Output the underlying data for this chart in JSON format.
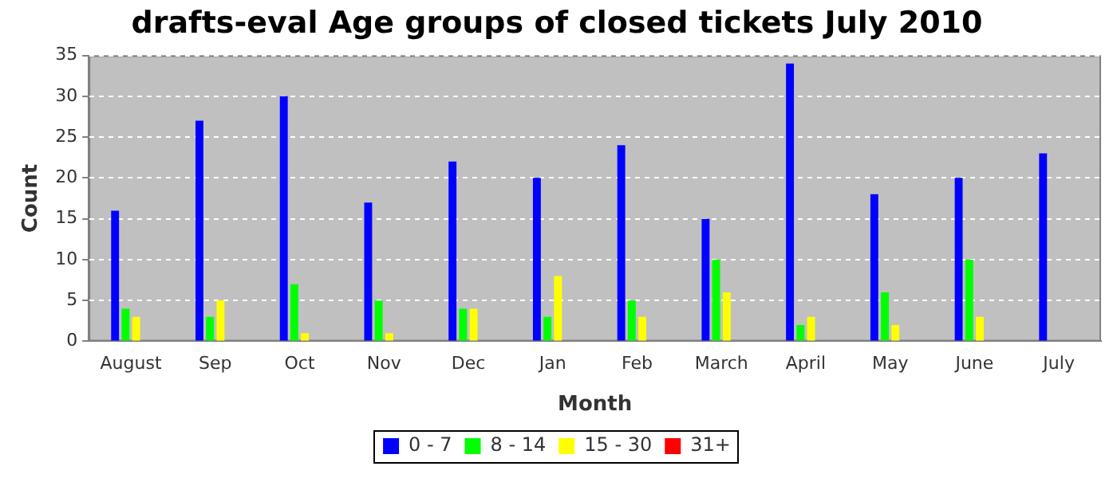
{
  "chart_data": {
    "type": "bar",
    "title": "drafts-eval Age groups of closed tickets July 2010",
    "xlabel": "Month",
    "ylabel": "Count",
    "categories": [
      "August",
      "Sep",
      "Oct",
      "Nov",
      "Dec",
      "Jan",
      "Feb",
      "March",
      "April",
      "May",
      "June",
      "July"
    ],
    "series": [
      {
        "name": "0 - 7",
        "color": "#0000ff",
        "values": [
          16,
          27,
          30,
          17,
          22,
          20,
          24,
          15,
          34,
          18,
          20,
          23
        ]
      },
      {
        "name": "8 - 14",
        "color": "#00ff00",
        "values": [
          4,
          3,
          7,
          5,
          4,
          3,
          5,
          10,
          2,
          6,
          10,
          0
        ]
      },
      {
        "name": "15 - 30",
        "color": "#ffff00",
        "values": [
          3,
          5,
          1,
          1,
          4,
          8,
          3,
          6,
          3,
          2,
          3,
          0
        ]
      },
      {
        "name": "31+",
        "color": "#ff0000",
        "values": [
          0,
          0,
          0,
          0,
          0,
          0,
          0,
          0,
          0,
          0,
          0,
          0
        ]
      }
    ],
    "ylim": [
      0,
      35
    ],
    "yticks": [
      0,
      5,
      10,
      15,
      20,
      25,
      30,
      35
    ],
    "grid": "y",
    "legend": "bottom"
  }
}
